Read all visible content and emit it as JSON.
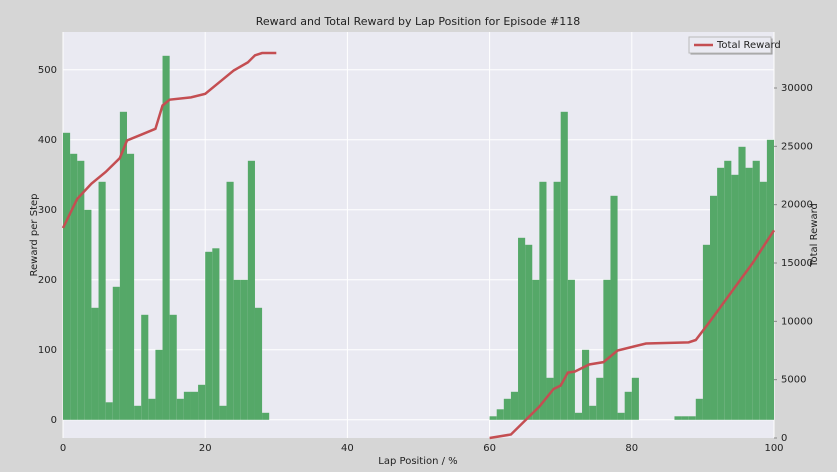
{
  "chart_data": {
    "type": "bar",
    "title": "Reward and Total Reward by Lap Position for Episode #118",
    "x_label": "Lap Position / %",
    "y_label": "Reward per Step",
    "y2_label": "Total Reward",
    "xlim": [
      0,
      100
    ],
    "xticks": [
      0,
      20,
      40,
      60,
      80,
      100
    ],
    "ylim": [
      -26,
      554
    ],
    "yticks": [
      0,
      100,
      200,
      300,
      400,
      500
    ],
    "y2lim": [
      0,
      34800
    ],
    "y2ticks": [
      0,
      5000,
      10000,
      15000,
      20000,
      25000,
      30000
    ],
    "grid": true,
    "legend": "upper right",
    "series": [
      {
        "type": "bar",
        "color": "#55a868",
        "x": [
          0.5,
          1.5,
          2.5,
          3.5,
          4.5,
          5.5,
          6.5,
          7.5,
          8.5,
          9.5,
          10.5,
          11.5,
          12.5,
          13.5,
          14.5,
          15.5,
          16.5,
          17.5,
          18.5,
          19.5,
          20.5,
          21.5,
          22.5,
          23.5,
          24.5,
          25.5,
          26.5,
          27.5,
          28.5,
          29.5,
          60.5,
          61.5,
          62.5,
          63.5,
          64.5,
          65.5,
          66.5,
          67.5,
          68.5,
          69.5,
          70.5,
          71.5,
          72.5,
          73.5,
          74.5,
          75.5,
          76.5,
          77.5,
          78.5,
          79.5,
          80.5,
          81.5,
          82.5,
          83.5,
          84.5,
          85.5,
          86.5,
          87.5,
          88.5,
          89.5,
          90.5,
          91.5,
          92.5,
          93.5,
          94.5,
          95.5,
          96.5,
          97.5,
          98.5,
          99.5
        ],
        "values": [
          410,
          380,
          370,
          300,
          160,
          340,
          25,
          190,
          440,
          380,
          20,
          150,
          30,
          100,
          520,
          150,
          30,
          40,
          40,
          50,
          240,
          245,
          20,
          340,
          200,
          200,
          370,
          160,
          10,
          0,
          5,
          15,
          30,
          40,
          260,
          250,
          200,
          340,
          60,
          340,
          440,
          200,
          10,
          100,
          20,
          60,
          200,
          320,
          10,
          40,
          60,
          0,
          0,
          0,
          0,
          0,
          5,
          5,
          5,
          30,
          250,
          320,
          360,
          370,
          350,
          390,
          360,
          370,
          340,
          400
        ]
      },
      {
        "type": "line",
        "name": "Total Reward",
        "color": "#c44e52",
        "axis": "y2",
        "x": [
          0,
          2,
          4,
          6,
          8,
          9,
          11,
          13,
          14,
          15,
          18,
          20,
          22,
          24,
          26,
          27,
          28,
          30,
          45,
          60,
          63,
          65,
          67,
          69,
          70,
          71,
          72,
          73,
          74,
          76,
          78,
          80,
          82,
          88,
          89,
          91,
          94,
          97,
          100
        ],
        "values": [
          18000,
          20500,
          21800,
          22800,
          24000,
          25500,
          26000,
          26500,
          28500,
          29000,
          29200,
          29500,
          30500,
          31500,
          32200,
          32800,
          33000,
          33000,
          null,
          0,
          300,
          1500,
          2700,
          4200,
          4500,
          5600,
          5700,
          6000,
          6300,
          6500,
          7500,
          7800,
          8100,
          8200,
          8400,
          10000,
          12500,
          15000,
          17800
        ]
      }
    ]
  }
}
